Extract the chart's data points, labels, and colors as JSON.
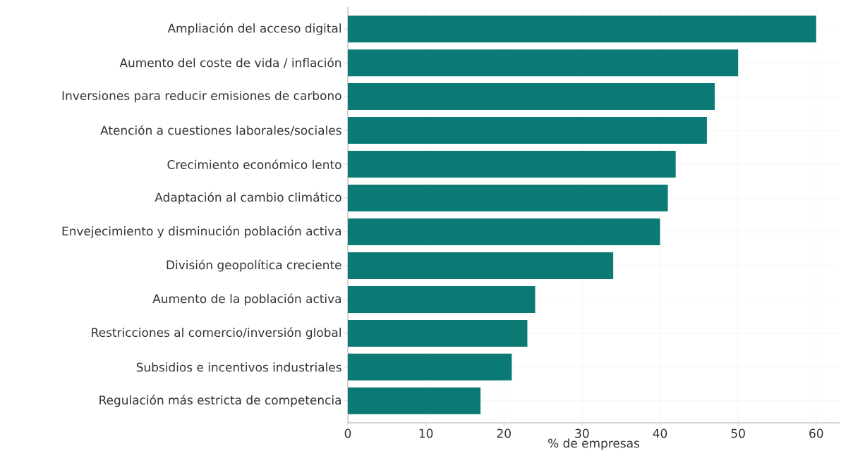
{
  "chart_data": {
    "type": "bar",
    "orientation": "horizontal",
    "xlabel": "% de empresas",
    "categories": [
      "Ampliación del acceso digital",
      "Aumento del coste de vida / inflación",
      "Inversiones para reducir emisiones de carbono",
      "Atención a cuestiones laborales/sociales",
      "Crecimiento económico lento",
      "Adaptación al cambio climático",
      "Envejecimiento y disminución población activa",
      "División geopolítica creciente",
      "Aumento de la población activa",
      "Restricciones al comercio/inversión global",
      "Subsidios e incentivos industriales",
      "Regulación más estricta de competencia"
    ],
    "values": [
      60,
      50,
      47,
      46,
      42,
      41,
      40,
      34,
      24,
      23,
      21,
      17
    ],
    "color": "#0b7a75",
    "xlim": [
      0,
      63
    ],
    "xticks": [
      0,
      10,
      20,
      30,
      40,
      50,
      60
    ],
    "grid": true
  }
}
